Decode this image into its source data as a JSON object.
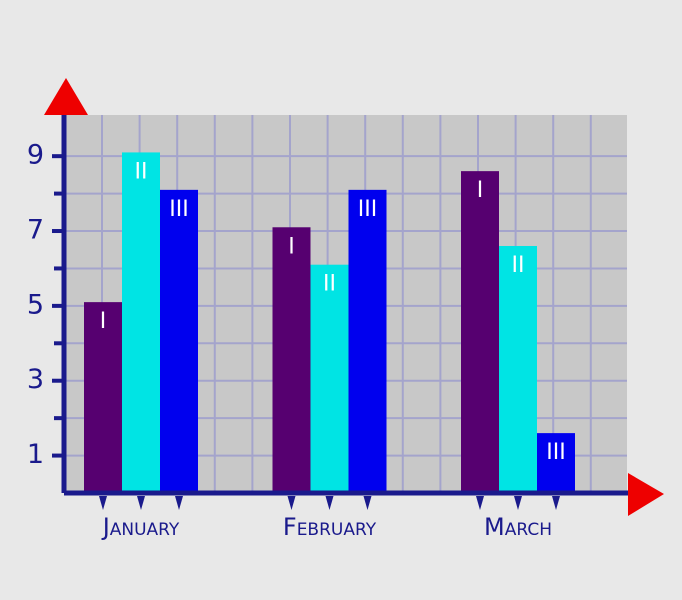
{
  "chart_data": {
    "type": "bar",
    "categories": [
      "January",
      "February",
      "March"
    ],
    "series": [
      {
        "name": "I",
        "color": "#560070",
        "values": [
          5.1,
          7.1,
          8.6
        ]
      },
      {
        "name": "II",
        "color": "#00e4e4",
        "values": [
          9.1,
          6.1,
          6.6
        ]
      },
      {
        "name": "III",
        "color": "#0000ee",
        "values": [
          8.1,
          8.1,
          1.6
        ]
      }
    ],
    "ylim": [
      0,
      10.1
    ],
    "yticks": [
      1,
      3,
      5,
      7,
      9
    ],
    "minor_yticks": [
      2,
      4,
      6,
      8
    ],
    "grid": true
  }
}
